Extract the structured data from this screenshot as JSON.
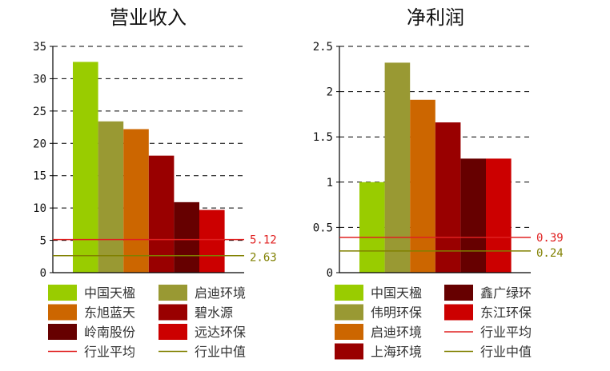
{
  "chart_data": [
    {
      "type": "bar",
      "title": "营业收入",
      "categories": [
        "中国天楹",
        "启迪环境",
        "东旭蓝天",
        "碧水源",
        "岭南股份",
        "远达环保"
      ],
      "values": [
        32.6,
        23.4,
        22.2,
        18.1,
        10.9,
        9.7
      ],
      "colors": [
        "#99cc00",
        "#999933",
        "#cc6600",
        "#990000",
        "#660000",
        "#cc0000"
      ],
      "ylim": [
        0,
        35
      ],
      "yticks": [
        "0",
        "5",
        "10",
        "15",
        "20",
        "25",
        "30",
        "35"
      ],
      "grid": true,
      "reference_lines": [
        {
          "name": "行业平均",
          "value": 5.12,
          "label": "5.12",
          "color": "#e02020"
        },
        {
          "name": "行业中值",
          "value": 2.63,
          "label": "2.63",
          "color": "#808000"
        }
      ],
      "legend": {
        "placement": "bottom",
        "items": [
          "中国天楹",
          "启迪环境",
          "东旭蓝天",
          "碧水源",
          "岭南股份",
          "远达环保",
          "行业平均",
          "行业中值"
        ]
      }
    },
    {
      "type": "bar",
      "title": "净利润",
      "categories": [
        "中国天楹",
        "伟明环保",
        "启迪环境",
        "上海环境",
        "鑫广绿环",
        "东江环保"
      ],
      "values": [
        1.0,
        2.32,
        1.91,
        1.66,
        1.26,
        1.26
      ],
      "colors": [
        "#99cc00",
        "#999933",
        "#cc6600",
        "#990000",
        "#660000",
        "#cc0000"
      ],
      "ylim": [
        0,
        2.5
      ],
      "yticks": [
        "0",
        "0.5",
        "1",
        "1.5",
        "2",
        "2.5"
      ],
      "grid": true,
      "reference_lines": [
        {
          "name": "行业平均",
          "value": 0.39,
          "label": "0.39",
          "color": "#e02020"
        },
        {
          "name": "行业中值",
          "value": 0.24,
          "label": "0.24",
          "color": "#808000"
        }
      ],
      "legend": {
        "placement": "bottom",
        "items": [
          "中国天楹",
          "鑫广绿环",
          "伟明环保",
          "东江环保",
          "启迪环境",
          "行业平均",
          "上海环境",
          "行业中值"
        ]
      }
    }
  ]
}
